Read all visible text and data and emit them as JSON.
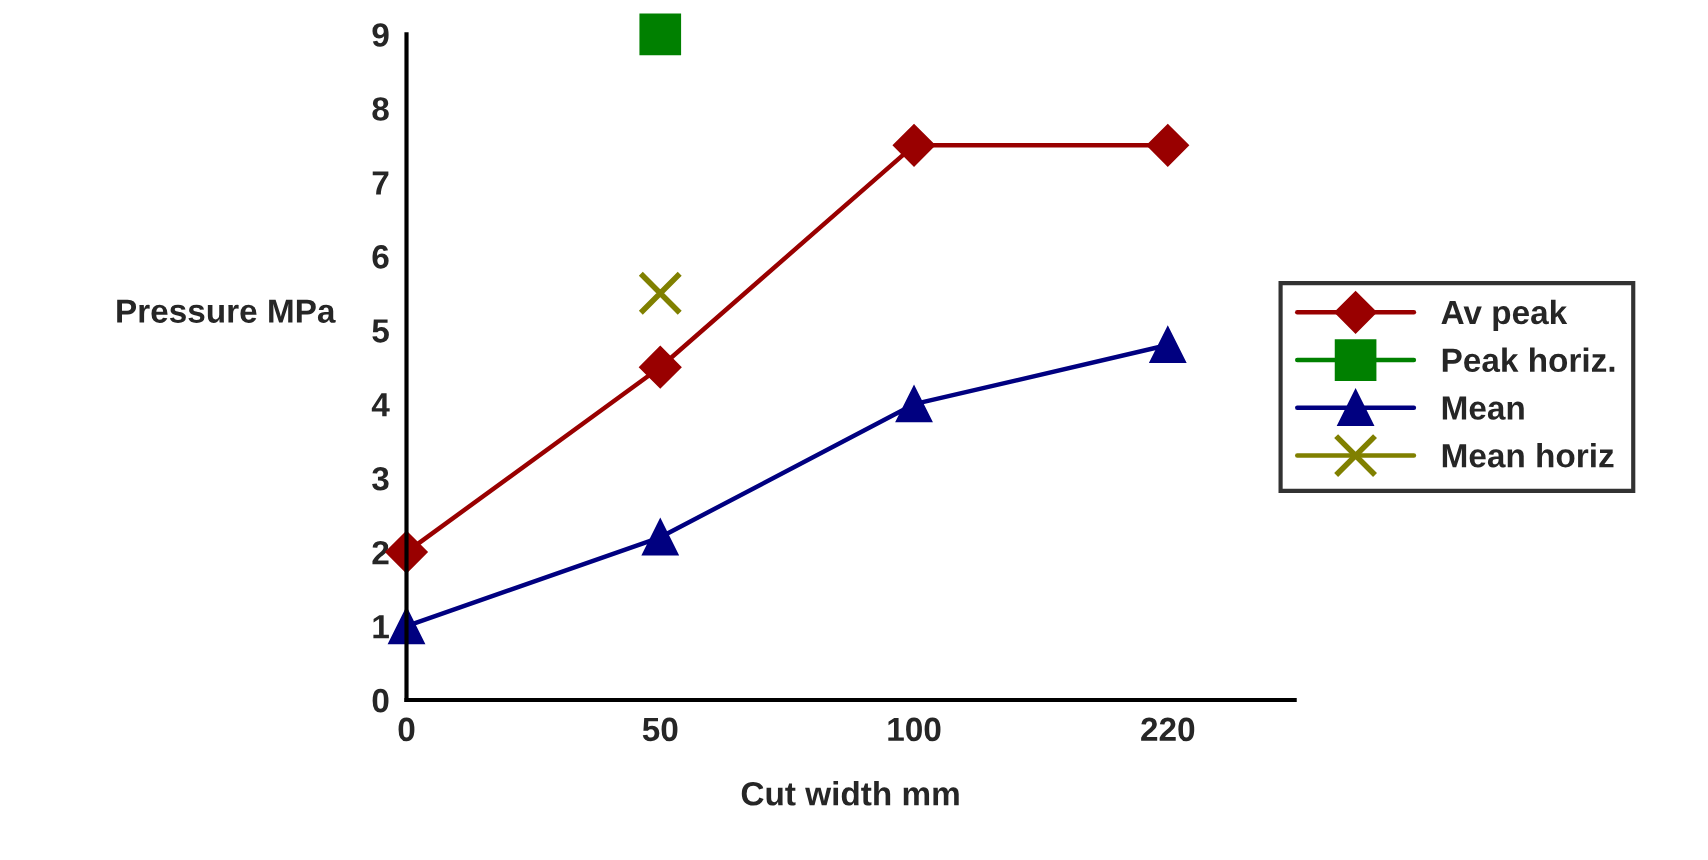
{
  "chart_data": {
    "type": "line",
    "xlabel": "Cut width mm",
    "ylabel": "Pressure MPa",
    "categories": [
      "0",
      "50",
      "100",
      "220"
    ],
    "ylim": [
      0,
      9
    ],
    "yticks": [
      0,
      1,
      2,
      3,
      4,
      5,
      6,
      7,
      8,
      9
    ],
    "grid": false,
    "legend": "right",
    "series": [
      {
        "name": "Av peak",
        "color": "#990000",
        "marker": "diamond",
        "values": [
          2,
          4.5,
          7.5,
          7.5
        ]
      },
      {
        "name": "Peak horiz.",
        "color": "#008000",
        "marker": "square",
        "values": [
          null,
          9,
          null,
          null
        ]
      },
      {
        "name": "Mean",
        "color": "#000080",
        "marker": "triangle",
        "values": [
          1,
          2.2,
          4,
          4.8
        ]
      },
      {
        "name": "Mean horiz",
        "color": "#808000",
        "marker": "cross",
        "values": [
          null,
          5.5,
          null,
          null
        ]
      }
    ]
  }
}
